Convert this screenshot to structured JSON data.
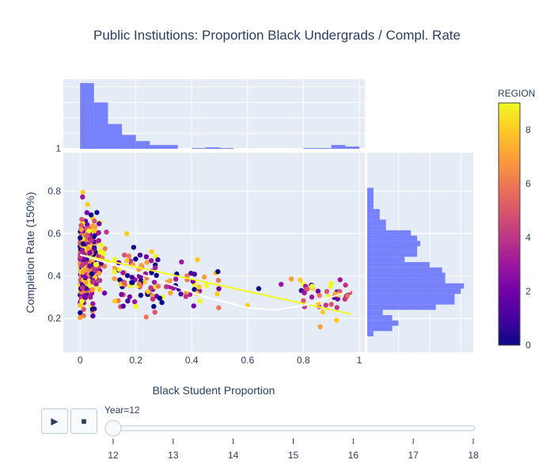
{
  "chart_data": {
    "type": "scatter",
    "title": "Public Instiutions: Proportion Black Undergrads / Compl. Rate",
    "xlabel": "Black Student Proportion",
    "ylabel": "Completion Rate (150%)",
    "xlim": [
      -0.06,
      1.02
    ],
    "ylim": [
      0.04,
      0.98
    ],
    "x_ticks": [
      0,
      0.2,
      0.4,
      0.6,
      0.8,
      1
    ],
    "x_tick_labels": [
      "0",
      "0.2",
      "0.4",
      "0.6",
      "0.8",
      "1"
    ],
    "y_ticks": [
      0.2,
      0.4,
      0.6,
      0.8,
      1
    ],
    "y_tick_labels": [
      "0.2",
      "0.4",
      "0.6",
      "0.8",
      "1"
    ],
    "grid": true,
    "colorbar": {
      "title": "REGION",
      "range": [
        0,
        9
      ],
      "ticks": [
        0,
        2,
        4,
        6,
        8
      ],
      "tick_labels": [
        "0",
        "2",
        "4",
        "6",
        "8"
      ],
      "colorscale": [
        "#0d0887",
        "#46039f",
        "#7201a8",
        "#9c179e",
        "#bd3786",
        "#d8576b",
        "#ed7953",
        "#fb9f3a",
        "#fdca26",
        "#f0f921"
      ]
    },
    "trendlines": [
      {
        "kind": "linear",
        "color": "#f0f921",
        "x": [
          0,
          0.97
        ],
        "y": [
          0.5,
          0.22
        ]
      },
      {
        "kind": "lowess",
        "color": "#ffffff",
        "x": [
          0,
          0.15,
          0.3,
          0.45,
          0.6,
          0.7,
          0.8,
          0.9,
          0.97
        ],
        "y": [
          0.5,
          0.44,
          0.37,
          0.3,
          0.25,
          0.24,
          0.26,
          0.3,
          0.33
        ]
      }
    ],
    "x_histogram": {
      "bin_start": 0,
      "bin_width": 0.05,
      "counts": [
        85,
        60,
        32,
        18,
        10,
        5,
        5,
        0,
        1,
        2,
        1,
        0,
        0,
        0,
        0,
        0,
        1,
        1,
        5,
        3
      ],
      "max_count": 90,
      "color": "#636efa"
    },
    "y_histogram": {
      "bin_start": 0.04,
      "bin_width": 0.025,
      "counts": [
        0,
        0,
        0,
        2,
        8,
        10,
        8,
        5,
        22,
        28,
        28,
        30,
        31,
        25,
        25,
        24,
        20,
        12,
        16,
        16,
        17,
        16,
        14,
        6,
        6,
        4,
        4,
        2,
        2,
        2,
        2,
        0,
        0,
        0,
        0,
        0,
        0,
        0
      ],
      "max_count": 34,
      "color": "#636efa"
    },
    "slider": {
      "label": "Year=12",
      "ticks": [
        12,
        13,
        14,
        15,
        16,
        17,
        18
      ],
      "tick_labels": [
        "12",
        "13",
        "14",
        "15",
        "16",
        "17",
        "18"
      ],
      "value": 12
    },
    "buttons": {
      "play": "▶",
      "stop": "■"
    }
  }
}
